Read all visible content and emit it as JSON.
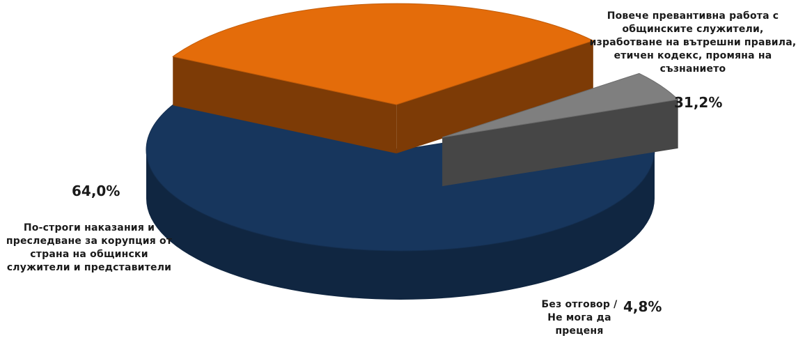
{
  "chart_data": {
    "type": "pie",
    "title": "",
    "slices": [
      {
        "label": "По-строги наказания и преследване за корупция от страна на общински служители и представители",
        "value": 64.0,
        "value_label": "64,0%",
        "color": "#17365d"
      },
      {
        "label": "Повече превантивна работа с общинските служители, изработване на вътрешни правила, етичен кодекс, промяна на съзнанието",
        "value": 31.2,
        "value_label": "31,2%",
        "color": "#e46c0a"
      },
      {
        "label": "Без отговор / Не мога да преценя",
        "value": 4.8,
        "value_label": "4,8%",
        "color": "#7f7f7f"
      }
    ]
  }
}
